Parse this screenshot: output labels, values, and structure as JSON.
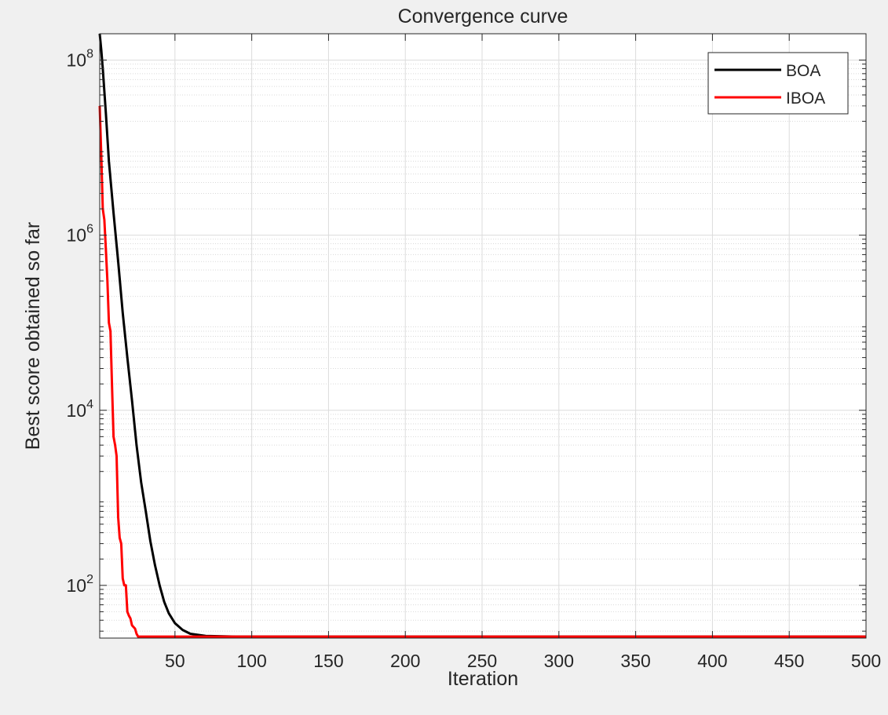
{
  "chart_data": {
    "type": "line",
    "title": "Convergence curve",
    "xlabel": "Iteration",
    "ylabel": "Best score obtained so far",
    "xlim": [
      1,
      500
    ],
    "ylim": [
      25,
      200000000
    ],
    "yscale": "log",
    "xticks": [
      50,
      100,
      150,
      200,
      250,
      300,
      350,
      400,
      450,
      500
    ],
    "yticks": [
      {
        "base": "10",
        "exp": "2",
        "value": 100
      },
      {
        "base": "10",
        "exp": "4",
        "value": 10000
      },
      {
        "base": "10",
        "exp": "6",
        "value": 1000000
      },
      {
        "base": "10",
        "exp": "8",
        "value": 100000000
      }
    ],
    "grid": true,
    "minor_grid": true,
    "legend": "top-right",
    "series": [
      {
        "name": "BOA",
        "color": "#000000",
        "points": [
          [
            1,
            200000000
          ],
          [
            2,
            130000000
          ],
          [
            3,
            80000000
          ],
          [
            5,
            25000000
          ],
          [
            7,
            7000000
          ],
          [
            10,
            1800000
          ],
          [
            13,
            500000
          ],
          [
            16,
            130000
          ],
          [
            19,
            40000
          ],
          [
            22,
            13000
          ],
          [
            25,
            4000
          ],
          [
            28,
            1500
          ],
          [
            31,
            700
          ],
          [
            34,
            320
          ],
          [
            37,
            170
          ],
          [
            40,
            100
          ],
          [
            43,
            65
          ],
          [
            46,
            48
          ],
          [
            50,
            37
          ],
          [
            55,
            31
          ],
          [
            60,
            28
          ],
          [
            70,
            26.5
          ],
          [
            90,
            26
          ],
          [
            500,
            26
          ]
        ]
      },
      {
        "name": "IBOA",
        "color": "#ff0000",
        "points": [
          [
            1,
            30000000
          ],
          [
            2,
            8000000
          ],
          [
            3,
            2000000
          ],
          [
            4,
            1500000
          ],
          [
            5,
            700000
          ],
          [
            6,
            300000
          ],
          [
            7,
            100000
          ],
          [
            8,
            80000
          ],
          [
            9,
            20000
          ],
          [
            10,
            5000
          ],
          [
            11,
            4000
          ],
          [
            12,
            3000
          ],
          [
            13,
            600
          ],
          [
            14,
            350
          ],
          [
            15,
            300
          ],
          [
            16,
            120
          ],
          [
            17,
            100
          ],
          [
            18,
            100
          ],
          [
            19,
            50
          ],
          [
            20,
            45
          ],
          [
            21,
            42
          ],
          [
            22,
            35
          ],
          [
            24,
            32
          ],
          [
            25,
            28
          ],
          [
            26,
            26
          ],
          [
            30,
            26
          ],
          [
            500,
            26
          ]
        ]
      }
    ]
  }
}
